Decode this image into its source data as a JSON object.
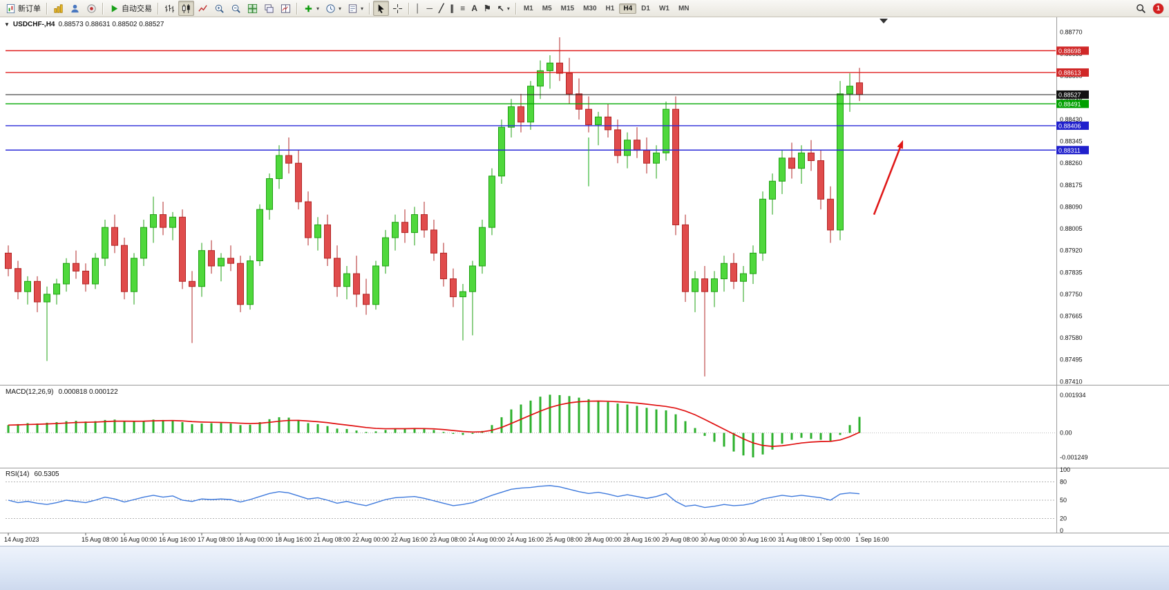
{
  "ui": {
    "toolbar": {
      "new_order_label": "新订单",
      "auto_trading_label": "自动交易",
      "timeframes": [
        "M1",
        "M5",
        "M15",
        "M30",
        "H1",
        "H4",
        "D1",
        "W1",
        "MN"
      ],
      "active_timeframe": "H4",
      "notification_count": "1",
      "glyphs": {
        "caret": "▾",
        "collapse": "▼",
        "vertical_line": "│",
        "horizontal_line": "─",
        "trendline": "╱",
        "channel": "∥",
        "fibonacci": "≡",
        "text_tool": "A",
        "label_tool": "⚑",
        "crosshair": "+",
        "arrow_tool": "↖"
      }
    },
    "chart_header": {
      "symbol": "USDCHF-,H4",
      "ohlc": "0.88573 0.88631 0.88502 0.88527"
    },
    "macd_label": {
      "name": "MACD(12,26,9)",
      "values": "0.000818 0.000122"
    },
    "rsi_label": {
      "name": "RSI(14)",
      "value": "60.5305"
    }
  },
  "chart_data": {
    "type": "candlestick",
    "symbol": "USDCHF-",
    "timeframe": "H4",
    "current_bar": {
      "open": 0.88573,
      "high": 0.88631,
      "low": 0.88502,
      "close": 0.88527
    },
    "price_axis": {
      "min": 0.874,
      "max": 0.8882,
      "labels": [
        "0.88770",
        "0.88685",
        "0.88600",
        "0.88515",
        "0.88430",
        "0.88345",
        "0.88260",
        "0.88175",
        "0.88090",
        "0.88005",
        "0.87920",
        "0.87835",
        "0.87750",
        "0.87665",
        "0.87580",
        "0.87495",
        "0.87410"
      ]
    },
    "candles": [
      [
        0.8791,
        0.8794,
        0.8782,
        0.8785
      ],
      [
        0.8785,
        0.8788,
        0.8773,
        0.8776
      ],
      [
        0.8776,
        0.8782,
        0.8771,
        0.878
      ],
      [
        0.878,
        0.8782,
        0.8768,
        0.8772
      ],
      [
        0.8772,
        0.8778,
        0.8749,
        0.8775
      ],
      [
        0.8775,
        0.8781,
        0.8771,
        0.8779
      ],
      [
        0.8779,
        0.8789,
        0.8776,
        0.8787
      ],
      [
        0.8787,
        0.8792,
        0.8781,
        0.8784
      ],
      [
        0.8784,
        0.8787,
        0.8776,
        0.8779
      ],
      [
        0.8779,
        0.8791,
        0.8777,
        0.8789
      ],
      [
        0.8789,
        0.8804,
        0.8786,
        0.8801
      ],
      [
        0.8801,
        0.8806,
        0.8791,
        0.8794
      ],
      [
        0.8794,
        0.8797,
        0.8773,
        0.8776
      ],
      [
        0.8776,
        0.8791,
        0.8771,
        0.8789
      ],
      [
        0.8789,
        0.8804,
        0.8786,
        0.8801
      ],
      [
        0.8801,
        0.8813,
        0.8795,
        0.8806
      ],
      [
        0.8806,
        0.8811,
        0.8798,
        0.8801
      ],
      [
        0.8801,
        0.8807,
        0.8796,
        0.8805
      ],
      [
        0.8805,
        0.8808,
        0.8777,
        0.878
      ],
      [
        0.878,
        0.8784,
        0.8756,
        0.8778
      ],
      [
        0.8778,
        0.8795,
        0.8774,
        0.8792
      ],
      [
        0.8792,
        0.8796,
        0.8783,
        0.8786
      ],
      [
        0.8786,
        0.8791,
        0.878,
        0.8789
      ],
      [
        0.8789,
        0.8794,
        0.8784,
        0.8787
      ],
      [
        0.8787,
        0.879,
        0.8768,
        0.8771
      ],
      [
        0.8771,
        0.879,
        0.8769,
        0.8788
      ],
      [
        0.8788,
        0.881,
        0.8786,
        0.8808
      ],
      [
        0.8808,
        0.8822,
        0.8804,
        0.882
      ],
      [
        0.882,
        0.8833,
        0.8816,
        0.8829
      ],
      [
        0.8829,
        0.8836,
        0.8822,
        0.8826
      ],
      [
        0.8826,
        0.8831,
        0.8808,
        0.8811
      ],
      [
        0.8811,
        0.8815,
        0.8794,
        0.8797
      ],
      [
        0.8797,
        0.8805,
        0.8792,
        0.8802
      ],
      [
        0.8802,
        0.8806,
        0.8786,
        0.8789
      ],
      [
        0.8789,
        0.8794,
        0.8774,
        0.8778
      ],
      [
        0.8778,
        0.8786,
        0.8773,
        0.8783
      ],
      [
        0.8783,
        0.879,
        0.877,
        0.8775
      ],
      [
        0.8775,
        0.8781,
        0.8767,
        0.8771
      ],
      [
        0.8771,
        0.8788,
        0.8769,
        0.8786
      ],
      [
        0.8786,
        0.88,
        0.8783,
        0.8797
      ],
      [
        0.8797,
        0.8806,
        0.8792,
        0.8803
      ],
      [
        0.8803,
        0.8808,
        0.8795,
        0.8799
      ],
      [
        0.8799,
        0.8809,
        0.8794,
        0.8806
      ],
      [
        0.8806,
        0.8811,
        0.8797,
        0.88
      ],
      [
        0.88,
        0.8804,
        0.8788,
        0.8791
      ],
      [
        0.8791,
        0.8795,
        0.8778,
        0.8781
      ],
      [
        0.8781,
        0.8785,
        0.877,
        0.8774
      ],
      [
        0.8774,
        0.8779,
        0.8757,
        0.8776
      ],
      [
        0.8776,
        0.8788,
        0.8759,
        0.8786
      ],
      [
        0.8786,
        0.8804,
        0.8783,
        0.8801
      ],
      [
        0.8801,
        0.8824,
        0.8798,
        0.8821
      ],
      [
        0.8821,
        0.8843,
        0.8818,
        0.884
      ],
      [
        0.884,
        0.8851,
        0.8836,
        0.8848
      ],
      [
        0.8848,
        0.8853,
        0.8838,
        0.8842
      ],
      [
        0.8842,
        0.8858,
        0.8839,
        0.8856
      ],
      [
        0.8856,
        0.8866,
        0.8851,
        0.8862
      ],
      [
        0.8862,
        0.8868,
        0.8855,
        0.8865
      ],
      [
        0.8865,
        0.8875,
        0.8858,
        0.8861
      ],
      [
        0.8861,
        0.8867,
        0.8849,
        0.8853
      ],
      [
        0.8853,
        0.8859,
        0.8843,
        0.8847
      ],
      [
        0.8847,
        0.8852,
        0.8838,
        0.8841
      ],
      [
        0.8841,
        0.8846,
        0.8833,
        0.8844
      ],
      [
        0.8844,
        0.8849,
        0.8836,
        0.8839
      ],
      [
        0.8839,
        0.8843,
        0.8826,
        0.8829
      ],
      [
        0.8829,
        0.8838,
        0.8824,
        0.8835
      ],
      [
        0.8835,
        0.884,
        0.8828,
        0.8831
      ],
      [
        0.8831,
        0.8836,
        0.8822,
        0.8826
      ],
      [
        0.8826,
        0.8833,
        0.882,
        0.883
      ],
      [
        0.883,
        0.885,
        0.8827,
        0.8847
      ],
      [
        0.8847,
        0.8852,
        0.8798,
        0.8802
      ],
      [
        0.8802,
        0.8806,
        0.8772,
        0.8776
      ],
      [
        0.8776,
        0.8784,
        0.8768,
        0.8781
      ],
      [
        0.8781,
        0.8786,
        0.8743,
        0.8776
      ],
      [
        0.8776,
        0.8784,
        0.877,
        0.8781
      ],
      [
        0.8781,
        0.879,
        0.8776,
        0.8787
      ],
      [
        0.8787,
        0.8791,
        0.8777,
        0.878
      ],
      [
        0.878,
        0.8786,
        0.8772,
        0.8783
      ],
      [
        0.8783,
        0.8794,
        0.8779,
        0.8791
      ],
      [
        0.8791,
        0.8815,
        0.8788,
        0.8812
      ],
      [
        0.8812,
        0.8822,
        0.8806,
        0.8819
      ],
      [
        0.8819,
        0.8831,
        0.8814,
        0.8828
      ],
      [
        0.8828,
        0.8834,
        0.882,
        0.8824
      ],
      [
        0.8824,
        0.8833,
        0.8818,
        0.883
      ],
      [
        0.883,
        0.8835,
        0.8823,
        0.8827
      ],
      [
        0.8827,
        0.8831,
        0.8808,
        0.8812
      ],
      [
        0.8812,
        0.8817,
        0.8795,
        0.88
      ],
      [
        0.88,
        0.8858,
        0.8796,
        0.8853
      ],
      [
        0.8853,
        0.8861,
        0.8846,
        0.8856
      ],
      [
        0.88573,
        0.88631,
        0.88502,
        0.88527
      ]
    ],
    "hlines": [
      {
        "price": 0.88698,
        "color": "#e02020"
      },
      {
        "price": 0.88613,
        "color": "#e02020"
      },
      {
        "price": 0.88491,
        "color": "#00a800"
      },
      {
        "price": 0.88406,
        "color": "#2828d8"
      },
      {
        "price": 0.88311,
        "color": "#2828d8"
      }
    ],
    "bid_line": {
      "price": 0.88527,
      "color": "#1a1a1a"
    },
    "price_tags": [
      {
        "text": "0.88698",
        "color": "#d02828"
      },
      {
        "text": "0.88613",
        "color": "#d02828"
      },
      {
        "text": "0.88527",
        "color": "#111111"
      },
      {
        "text": "0.88491",
        "color": "#00a000"
      },
      {
        "text": "0.88406",
        "color": "#2020cc"
      },
      {
        "text": "0.88311",
        "color": "#2020cc"
      }
    ],
    "time_labels": [
      {
        "text": "14 Aug 2023",
        "bar": 1
      },
      {
        "text": "15 Aug 08:00",
        "bar": 9
      },
      {
        "text": "16 Aug 00:00",
        "bar": 13
      },
      {
        "text": "16 Aug 16:00",
        "bar": 17
      },
      {
        "text": "17 Aug 08:00",
        "bar": 21
      },
      {
        "text": "18 Aug 00:00",
        "bar": 25
      },
      {
        "text": "18 Aug 16:00",
        "bar": 29
      },
      {
        "text": "21 Aug 08:00",
        "bar": 33
      },
      {
        "text": "22 Aug 00:00",
        "bar": 37
      },
      {
        "text": "22 Aug 16:00",
        "bar": 41
      },
      {
        "text": "23 Aug 08:00",
        "bar": 45
      },
      {
        "text": "24 Aug 00:00",
        "bar": 49
      },
      {
        "text": "24 Aug 16:00",
        "bar": 53
      },
      {
        "text": "25 Aug 08:00",
        "bar": 57
      },
      {
        "text": "28 Aug 00:00",
        "bar": 61
      },
      {
        "text": "28 Aug 16:00",
        "bar": 65
      },
      {
        "text": "29 Aug 08:00",
        "bar": 69
      },
      {
        "text": "30 Aug 00:00",
        "bar": 73
      },
      {
        "text": "30 Aug 16:00",
        "bar": 77
      },
      {
        "text": "31 Aug 08:00",
        "bar": 81
      },
      {
        "text": "1 Sep 00:00",
        "bar": 85
      },
      {
        "text": "1 Sep 16:00",
        "bar": 89
      }
    ],
    "macd": {
      "name": "MACD(12,26,9)",
      "main_value": 0.000818,
      "signal_value": 0.000122,
      "axis": [
        "0.001934",
        "0.00",
        "-0.001249"
      ],
      "range": {
        "min": -0.0016,
        "max": 0.00235
      },
      "values": [
        0.0004,
        0.00045,
        0.0005,
        0.00048,
        0.00052,
        0.00055,
        0.0006,
        0.00062,
        0.00058,
        0.0006,
        0.00066,
        0.00068,
        0.0006,
        0.00058,
        0.00062,
        0.00068,
        0.00066,
        0.00065,
        0.00055,
        0.00045,
        0.00048,
        0.0005,
        0.0005,
        0.00048,
        0.0004,
        0.00042,
        0.00055,
        0.0007,
        0.0008,
        0.00078,
        0.00065,
        0.0005,
        0.00045,
        0.00035,
        0.00022,
        0.0002,
        0.00012,
        5e-05,
        8e-05,
        0.00015,
        0.00022,
        0.00022,
        0.00025,
        0.00022,
        0.00015,
        5e-05,
        -5e-05,
        -0.0001,
        -5e-05,
        0.0001,
        0.0004,
        0.0008,
        0.0012,
        0.00145,
        0.00165,
        0.00185,
        0.00195,
        0.00193,
        0.00188,
        0.0018,
        0.00172,
        0.00165,
        0.00158,
        0.0015,
        0.00145,
        0.00138,
        0.00128,
        0.0012,
        0.00115,
        0.00095,
        0.0006,
        0.00025,
        -0.00015,
        -0.00045,
        -0.0007,
        -0.00095,
        -0.00115,
        -0.00125,
        -0.0011,
        -0.00085,
        -0.00055,
        -0.00035,
        -0.00025,
        -0.0003,
        -0.00035,
        -0.0004,
        -0.0001,
        0.0004,
        0.000818
      ]
    },
    "rsi": {
      "name": "RSI(14)",
      "value": 60.5305,
      "axis": [
        "100",
        "80",
        "50",
        "20",
        "0"
      ],
      "levels": [
        80,
        50,
        20
      ],
      "values": [
        50,
        46,
        48,
        45,
        43,
        46,
        50,
        48,
        46,
        50,
        55,
        52,
        47,
        51,
        55,
        58,
        55,
        57,
        50,
        48,
        52,
        51,
        52,
        51,
        47,
        51,
        56,
        61,
        64,
        62,
        57,
        52,
        54,
        50,
        45,
        48,
        44,
        41,
        46,
        51,
        54,
        55,
        56,
        53,
        49,
        45,
        41,
        43,
        46,
        52,
        58,
        63,
        68,
        70,
        71,
        73,
        74,
        72,
        68,
        64,
        61,
        63,
        60,
        56,
        59,
        56,
        53,
        56,
        61,
        48,
        40,
        42,
        38,
        40,
        43,
        41,
        42,
        45,
        52,
        55,
        58,
        56,
        58,
        56,
        54,
        50,
        60,
        62,
        60.5305
      ]
    },
    "objects": {
      "arrow": {
        "bar1": 90.5,
        "price1": 0.8806,
        "bar2": 93.4,
        "price2": 0.8834,
        "color": "#e01818"
      },
      "segment": {
        "bar": 61,
        "price1": 0.8817,
        "price2": 0.8836,
        "color": "#30b830"
      },
      "end_marker_bar": 91.5
    },
    "colors": {
      "up": "#1fa012",
      "up_fill": "#4fd83c",
      "down": "#b22424",
      "down_fill": "#e04c4c",
      "macd_hist": "#2cb02c",
      "macd_signal": "#e01010",
      "rsi_line": "#3c78dc"
    }
  }
}
